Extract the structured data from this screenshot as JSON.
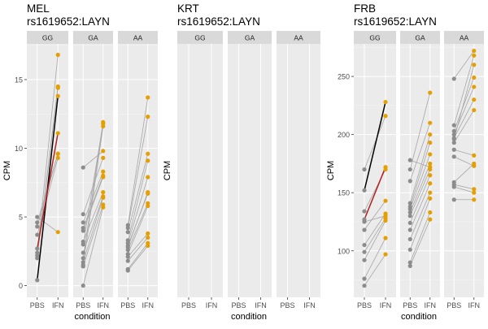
{
  "chart_data": [
    {
      "type": "line",
      "title": "MEL\nrs1619652:LAYN",
      "xlabel": "condition",
      "ylabel": "CPM",
      "ylim": [
        -0.85,
        17.6
      ],
      "yticks": [
        0,
        5,
        10,
        15
      ],
      "facets": [
        "GG",
        "GA",
        "AA"
      ],
      "x_categories": [
        "PBS",
        "IFN"
      ],
      "colors": {
        "PBS": "#8c8c8c",
        "IFN": "#e69f00",
        "line": "#a6a6a6",
        "highlight_black": "#000000",
        "highlight_red": "#b22222"
      },
      "panels": [
        {
          "facet": "GG",
          "pairs": [
            [
              0.4,
              13.8
            ],
            [
              2.0,
              14.4
            ],
            [
              2.2,
              14.5
            ],
            [
              2.4,
              16.8
            ],
            [
              3.7,
              9.3
            ],
            [
              4.3,
              9.6
            ],
            [
              4.6,
              9.6
            ],
            [
              5.0,
              3.9
            ],
            [
              2.7,
              11.1
            ]
          ],
          "highlight_pairs": [
            {
              "pbs": 0.4,
              "ifn": 13.8,
              "color": "#000000"
            },
            {
              "pbs": 2.7,
              "ifn": 11.1,
              "color": "#b22222"
            }
          ]
        },
        {
          "facet": "GA",
          "pairs": [
            [
              0.0,
              5.7
            ],
            [
              1.4,
              5.9
            ],
            [
              1.7,
              6.4
            ],
            [
              2.4,
              6.5
            ],
            [
              3.2,
              6.8
            ],
            [
              4.0,
              7.9
            ],
            [
              4.2,
              8.0
            ],
            [
              4.6,
              8.3
            ],
            [
              5.2,
              9.3
            ],
            [
              8.6,
              9.8
            ],
            [
              1.5,
              11.6
            ],
            [
              2.0,
              11.9
            ],
            [
              3.0,
              11.8
            ]
          ],
          "highlight_pairs": []
        },
        {
          "facet": "AA",
          "pairs": [
            [
              1.1,
              2.9
            ],
            [
              1.2,
              3.1
            ],
            [
              1.8,
              3.5
            ],
            [
              2.1,
              3.8
            ],
            [
              2.3,
              5.8
            ],
            [
              2.6,
              6.0
            ],
            [
              2.8,
              6.8
            ],
            [
              3.1,
              7.9
            ],
            [
              3.3,
              9.1
            ],
            [
              3.9,
              9.6
            ],
            [
              4.2,
              12.3
            ],
            [
              4.4,
              13.7
            ],
            [
              2.9,
              6.7
            ]
          ],
          "highlight_pairs": []
        }
      ]
    },
    {
      "type": "line",
      "title": "KRT\nrs1619652:LAYN",
      "xlabel": "condition",
      "ylabel": "CPM",
      "facets": [
        "GG",
        "GA",
        "AA"
      ],
      "x_categories": [
        "PBS",
        "IFN"
      ],
      "panels": [
        {
          "facet": "GG",
          "pairs": [],
          "highlight_pairs": []
        },
        {
          "facet": "GA",
          "pairs": [],
          "highlight_pairs": []
        },
        {
          "facet": "AA",
          "pairs": [],
          "highlight_pairs": []
        }
      ]
    },
    {
      "type": "line",
      "title": "FRB\nrs1619652:LAYN",
      "xlabel": "condition",
      "ylabel": "CPM",
      "ylim": [
        60,
        278
      ],
      "yticks": [
        100,
        150,
        200,
        250
      ],
      "facets": [
        "GG",
        "GA",
        "AA"
      ],
      "x_categories": [
        "PBS",
        "IFN"
      ],
      "panels": [
        {
          "facet": "GG",
          "pairs": [
            [
              152,
              228
            ],
            [
              127,
              172
            ],
            [
              70,
              97
            ],
            [
              76,
              111
            ],
            [
              92,
              126
            ],
            [
              99,
              128
            ],
            [
              105,
              132
            ],
            [
              118,
              143
            ],
            [
              125,
              130
            ],
            [
              134,
              170
            ],
            [
              170,
              216
            ]
          ],
          "highlight_pairs": [
            {
              "pbs": 152,
              "ifn": 228,
              "color": "#000000"
            },
            {
              "pbs": 127,
              "ifn": 172,
              "color": "#b22222"
            }
          ]
        },
        {
          "facet": "GA",
          "pairs": [
            [
              87,
              127
            ],
            [
              90,
              133
            ],
            [
              101,
              145
            ],
            [
              110,
              150
            ],
            [
              118,
              158
            ],
            [
              124,
              165
            ],
            [
              130,
              170
            ],
            [
              133,
              175
            ],
            [
              136,
              183
            ],
            [
              138,
              193
            ],
            [
              141,
              200
            ],
            [
              160,
              210
            ],
            [
              170,
              236
            ],
            [
              178,
              172
            ]
          ],
          "highlight_pairs": []
        },
        {
          "facet": "AA",
          "pairs": [
            [
              144,
              144
            ],
            [
              155,
              150
            ],
            [
              157,
              153
            ],
            [
              159,
              175
            ],
            [
              181,
              173
            ],
            [
              187,
              182
            ],
            [
              193,
              221
            ],
            [
              197,
              230
            ],
            [
              200,
              241
            ],
            [
              203,
              249
            ],
            [
              208,
              268
            ],
            [
              248,
              272
            ],
            [
              196,
              260
            ]
          ],
          "highlight_pairs": []
        }
      ]
    }
  ]
}
